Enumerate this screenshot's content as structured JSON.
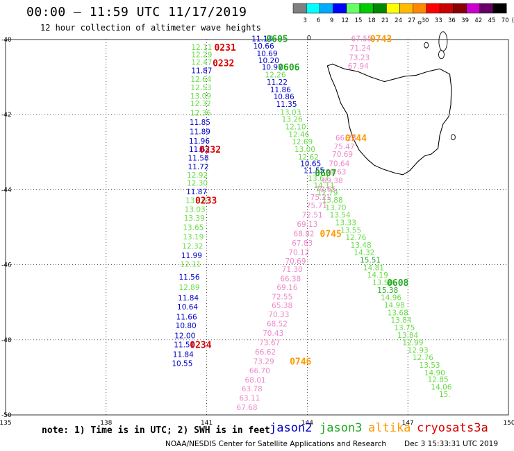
{
  "title": "00:00 — 11:59 UTC 11/17/2019",
  "subtitle": "12 hour collection of altimeter wave heights",
  "color_scale": {
    "labels": [
      "3",
      "6",
      "9",
      "12",
      "15",
      "18",
      "21",
      "24",
      "27",
      "30",
      "33",
      "36",
      "39",
      "42",
      "45",
      "70",
      "(ft)"
    ],
    "colors": [
      "#808080",
      "#00ffff",
      "#00aaff",
      "#0000ff",
      "#66ff66",
      "#00cc00",
      "#008800",
      "#ffff00",
      "#ffbb00",
      "#ff8800",
      "#ff0000",
      "#cc0000",
      "#880000",
      "#cc00cc",
      "#660066",
      "#000000"
    ]
  },
  "axes": {
    "lat_labels": [
      "-40",
      "-42",
      "-44",
      "-46",
      "-48",
      "-50"
    ],
    "lon_labels": [
      "135",
      "138",
      "141",
      "144",
      "147",
      "150"
    ]
  },
  "satellite_colors": {
    "jason2": "#0000cc",
    "jason3": "#22aa22",
    "altika": "#ff9900",
    "cryosat": "#dd0000",
    "s3a": "#cc0000",
    "pink": "#ee88cc",
    "lightgreen": "#66dd44"
  },
  "tracks": [
    {
      "name": "track-west",
      "points": [
        {
          "v": "12.11",
          "lon": 140.85,
          "lat": -40.2,
          "c": "lightgreen"
        },
        {
          "v": "12.29",
          "lon": 140.85,
          "lat": -40.4,
          "c": "lightgreen"
        },
        {
          "v": "12.47",
          "lon": 140.85,
          "lat": -40.6,
          "c": "lightgreen"
        },
        {
          "v": "11.87",
          "lon": 140.85,
          "lat": -40.82,
          "c": "jason2"
        },
        {
          "v": "12.64",
          "lon": 140.83,
          "lat": -41.05,
          "c": "lightgreen"
        },
        {
          "v": "12.53",
          "lon": 140.83,
          "lat": -41.28,
          "c": "lightgreen"
        },
        {
          "v": "13.09",
          "lon": 140.82,
          "lat": -41.5,
          "c": "lightgreen"
        },
        {
          "v": "12.32",
          "lon": 140.82,
          "lat": -41.7,
          "c": "lightgreen"
        },
        {
          "v": "12.36",
          "lon": 140.82,
          "lat": -41.95,
          "c": "lightgreen"
        },
        {
          "v": "11.85",
          "lon": 140.8,
          "lat": -42.2,
          "c": "jason2"
        },
        {
          "v": "11.89",
          "lon": 140.8,
          "lat": -42.45,
          "c": "jason2"
        },
        {
          "v": "11.96",
          "lon": 140.78,
          "lat": -42.7,
          "c": "jason2"
        },
        {
          "v": "11.63",
          "lon": 140.78,
          "lat": -42.92,
          "c": "jason2"
        },
        {
          "v": "11.58",
          "lon": 140.75,
          "lat": -43.15,
          "c": "jason2"
        },
        {
          "v": "11.72",
          "lon": 140.75,
          "lat": -43.38,
          "c": "jason2"
        },
        {
          "v": "12.92",
          "lon": 140.72,
          "lat": -43.6,
          "c": "lightgreen"
        },
        {
          "v": "12.30",
          "lon": 140.72,
          "lat": -43.82,
          "c": "lightgreen"
        },
        {
          "v": "11.87",
          "lon": 140.7,
          "lat": -44.05,
          "c": "jason2"
        },
        {
          "v": "13.16",
          "lon": 140.68,
          "lat": -44.28,
          "c": "lightgreen"
        },
        {
          "v": "13.03",
          "lon": 140.65,
          "lat": -44.52,
          "c": "lightgreen"
        },
        {
          "v": "13.39",
          "lon": 140.63,
          "lat": -44.75,
          "c": "lightgreen"
        },
        {
          "v": "13.65",
          "lon": 140.6,
          "lat": -45.0,
          "c": "lightgreen"
        },
        {
          "v": "13.19",
          "lon": 140.6,
          "lat": -45.25,
          "c": "lightgreen"
        },
        {
          "v": "12.32",
          "lon": 140.58,
          "lat": -45.5,
          "c": "lightgreen"
        },
        {
          "v": "11.99",
          "lon": 140.55,
          "lat": -45.75,
          "c": "jason2"
        },
        {
          "v": "12.11",
          "lon": 140.52,
          "lat": -45.98,
          "c": "lightgreen"
        },
        {
          "v": "11.56",
          "lon": 140.48,
          "lat": -46.32,
          "c": "jason2"
        },
        {
          "v": "12.89",
          "lon": 140.48,
          "lat": -46.6,
          "c": "lightgreen"
        },
        {
          "v": "11.84",
          "lon": 140.45,
          "lat": -46.88,
          "c": "jason2"
        },
        {
          "v": "10.64",
          "lon": 140.43,
          "lat": -47.12,
          "c": "jason2"
        },
        {
          "v": "11.66",
          "lon": 140.4,
          "lat": -47.38,
          "c": "jason2"
        },
        {
          "v": "10.80",
          "lon": 140.38,
          "lat": -47.62,
          "c": "jason2"
        },
        {
          "v": "12.00",
          "lon": 140.35,
          "lat": -47.88,
          "c": "jason2"
        },
        {
          "v": "11.51",
          "lon": 140.33,
          "lat": -48.12,
          "c": "jason2"
        },
        {
          "v": "11.84",
          "lon": 140.3,
          "lat": -48.38,
          "c": "jason2"
        },
        {
          "v": "10.55",
          "lon": 140.27,
          "lat": -48.62,
          "c": "jason2"
        }
      ]
    },
    {
      "name": "track-northeast-blue",
      "points": [
        {
          "v": "11.14",
          "lon": 142.65,
          "lat": -39.97,
          "c": "jason2"
        },
        {
          "v": "10.66",
          "lon": 142.7,
          "lat": -40.17,
          "c": "jason2"
        },
        {
          "v": "10.69",
          "lon": 142.8,
          "lat": -40.37,
          "c": "jason2"
        },
        {
          "v": "10.20",
          "lon": 142.85,
          "lat": -40.55,
          "c": "jason2"
        },
        {
          "v": "10.97",
          "lon": 142.95,
          "lat": -40.73,
          "c": "jason2"
        },
        {
          "v": "12.26",
          "lon": 143.05,
          "lat": -40.93,
          "c": "lightgreen"
        },
        {
          "v": "11.22",
          "lon": 143.1,
          "lat": -41.13,
          "c": "jason2"
        },
        {
          "v": "11.86",
          "lon": 143.2,
          "lat": -41.33,
          "c": "jason2"
        },
        {
          "v": "10.86",
          "lon": 143.3,
          "lat": -41.52,
          "c": "jason2"
        },
        {
          "v": "11.35",
          "lon": 143.38,
          "lat": -41.72,
          "c": "jason2"
        },
        {
          "v": "13.03",
          "lon": 143.5,
          "lat": -41.93,
          "c": "lightgreen"
        },
        {
          "v": "13.26",
          "lon": 143.55,
          "lat": -42.12,
          "c": "lightgreen"
        },
        {
          "v": "12.10",
          "lon": 143.65,
          "lat": -42.32,
          "c": "lightgreen"
        },
        {
          "v": "12.46",
          "lon": 143.75,
          "lat": -42.52,
          "c": "lightgreen"
        },
        {
          "v": "12.69",
          "lon": 143.85,
          "lat": -42.72,
          "c": "lightgreen"
        },
        {
          "v": "13.00",
          "lon": 143.93,
          "lat": -42.92,
          "c": "lightgreen"
        },
        {
          "v": "12.62",
          "lon": 144.03,
          "lat": -43.12,
          "c": "lightgreen"
        },
        {
          "v": "10.65",
          "lon": 144.1,
          "lat": -43.3,
          "c": "jason2"
        },
        {
          "v": "11.55",
          "lon": 144.2,
          "lat": -43.48,
          "c": "jason2"
        },
        {
          "v": "13.67",
          "lon": 144.33,
          "lat": -43.7,
          "c": "lightgreen"
        },
        {
          "v": "14.11",
          "lon": 144.5,
          "lat": -43.88,
          "c": "lightgreen"
        },
        {
          "v": "12.79",
          "lon": 144.6,
          "lat": -44.08,
          "c": "lightgreen"
        },
        {
          "v": "13.88",
          "lon": 144.75,
          "lat": -44.27,
          "c": "lightgreen"
        },
        {
          "v": "13.70",
          "lon": 144.85,
          "lat": -44.47,
          "c": "lightgreen"
        },
        {
          "v": "13.54",
          "lon": 144.98,
          "lat": -44.67,
          "c": "lightgreen"
        },
        {
          "v": "13.33",
          "lon": 145.15,
          "lat": -44.87,
          "c": "lightgreen"
        },
        {
          "v": "13.55",
          "lon": 145.3,
          "lat": -45.07,
          "c": "lightgreen"
        },
        {
          "v": "12.76",
          "lon": 145.45,
          "lat": -45.27,
          "c": "lightgreen"
        },
        {
          "v": "13.48",
          "lon": 145.6,
          "lat": -45.47,
          "c": "lightgreen"
        },
        {
          "v": "14.32",
          "lon": 145.7,
          "lat": -45.67,
          "c": "lightgreen"
        },
        {
          "v": "15.51",
          "lon": 145.88,
          "lat": -45.87,
          "c": "jason3"
        },
        {
          "v": "14.81",
          "lon": 145.98,
          "lat": -46.07,
          "c": "lightgreen"
        },
        {
          "v": "14.19",
          "lon": 146.1,
          "lat": -46.27,
          "c": "lightgreen"
        },
        {
          "v": "13.50",
          "lon": 146.25,
          "lat": -46.47,
          "c": "lightgreen"
        },
        {
          "v": "15.38",
          "lon": 146.4,
          "lat": -46.67,
          "c": "jason3"
        },
        {
          "v": "14.96",
          "lon": 146.5,
          "lat": -46.87,
          "c": "lightgreen"
        },
        {
          "v": "14.98",
          "lon": 146.6,
          "lat": -47.07,
          "c": "lightgreen"
        },
        {
          "v": "13.68",
          "lon": 146.7,
          "lat": -47.27,
          "c": "lightgreen"
        },
        {
          "v": "13.84",
          "lon": 146.8,
          "lat": -47.47,
          "c": "lightgreen"
        },
        {
          "v": "13.75",
          "lon": 146.9,
          "lat": -47.67,
          "c": "lightgreen"
        },
        {
          "v": "13.84",
          "lon": 147.0,
          "lat": -47.87,
          "c": "lightgreen"
        },
        {
          "v": "12.99",
          "lon": 147.15,
          "lat": -48.07,
          "c": "lightgreen"
        },
        {
          "v": "12.93",
          "lon": 147.3,
          "lat": -48.27,
          "c": "lightgreen"
        },
        {
          "v": "12.76",
          "lon": 147.45,
          "lat": -48.47,
          "c": "lightgreen"
        },
        {
          "v": "13.53",
          "lon": 147.65,
          "lat": -48.67,
          "c": "lightgreen"
        },
        {
          "v": "14.90",
          "lon": 147.8,
          "lat": -48.87,
          "c": "lightgreen"
        },
        {
          "v": "12.85",
          "lon": 147.9,
          "lat": -49.05,
          "c": "lightgreen"
        },
        {
          "v": "14.06",
          "lon": 148.0,
          "lat": -49.25,
          "c": "lightgreen"
        },
        {
          "v": "15.",
          "lon": 148.1,
          "lat": -49.45,
          "c": "lightgreen"
        }
      ]
    },
    {
      "name": "track-pink",
      "points": [
        {
          "v": "67.55",
          "lon": 145.62,
          "lat": -39.97,
          "c": "pink"
        },
        {
          "v": "71.24",
          "lon": 145.58,
          "lat": -40.22,
          "c": "pink"
        },
        {
          "v": "73.23",
          "lon": 145.55,
          "lat": -40.47,
          "c": "pink"
        },
        {
          "v": "67.94",
          "lon": 145.52,
          "lat": -40.7,
          "c": "pink"
        },
        {
          "v": "66.28",
          "lon": 145.15,
          "lat": -42.62,
          "c": "pink"
        },
        {
          "v": "75.47",
          "lon": 145.1,
          "lat": -42.85,
          "c": "pink"
        },
        {
          "v": "70.69",
          "lon": 145.05,
          "lat": -43.05,
          "c": "pink"
        },
        {
          "v": "70.64",
          "lon": 144.95,
          "lat": -43.3,
          "c": "pink"
        },
        {
          "v": "69.63",
          "lon": 144.85,
          "lat": -43.52,
          "c": "pink"
        },
        {
          "v": "69.38",
          "lon": 144.75,
          "lat": -43.75,
          "c": "pink"
        },
        {
          "v": "70.65",
          "lon": 144.55,
          "lat": -43.98,
          "c": "pink"
        },
        {
          "v": "75.21",
          "lon": 144.4,
          "lat": -44.2,
          "c": "pink"
        },
        {
          "v": "75.71",
          "lon": 144.28,
          "lat": -44.42,
          "c": "pink"
        },
        {
          "v": "72.51",
          "lon": 144.15,
          "lat": -44.67,
          "c": "pink"
        },
        {
          "v": "69.13",
          "lon": 144.0,
          "lat": -44.92,
          "c": "pink"
        },
        {
          "v": "68.82",
          "lon": 143.9,
          "lat": -45.17,
          "c": "pink"
        },
        {
          "v": "67.83",
          "lon": 143.85,
          "lat": -45.42,
          "c": "pink"
        },
        {
          "v": "70.12",
          "lon": 143.75,
          "lat": -45.67,
          "c": "pink"
        },
        {
          "v": "70.69",
          "lon": 143.65,
          "lat": -45.9,
          "c": "pink"
        },
        {
          "v": "71.30",
          "lon": 143.55,
          "lat": -46.12,
          "c": "pink"
        },
        {
          "v": "66.38",
          "lon": 143.5,
          "lat": -46.37,
          "c": "pink"
        },
        {
          "v": "69.16",
          "lon": 143.4,
          "lat": -46.6,
          "c": "pink"
        },
        {
          "v": "72.55",
          "lon": 143.25,
          "lat": -46.85,
          "c": "pink"
        },
        {
          "v": "65.38",
          "lon": 143.25,
          "lat": -47.08,
          "c": "pink"
        },
        {
          "v": "70.33",
          "lon": 143.15,
          "lat": -47.32,
          "c": "pink"
        },
        {
          "v": "68.52",
          "lon": 143.1,
          "lat": -47.57,
          "c": "pink"
        },
        {
          "v": "70.43",
          "lon": 142.98,
          "lat": -47.82,
          "c": "pink"
        },
        {
          "v": "73.67",
          "lon": 142.88,
          "lat": -48.07,
          "c": "pink"
        },
        {
          "v": "66.62",
          "lon": 142.75,
          "lat": -48.32,
          "c": "pink"
        },
        {
          "v": "73.29",
          "lon": 142.7,
          "lat": -48.57,
          "c": "pink"
        },
        {
          "v": "66.70",
          "lon": 142.58,
          "lat": -48.82,
          "c": "pink"
        },
        {
          "v": "68.01",
          "lon": 142.45,
          "lat": -49.07,
          "c": "pink"
        },
        {
          "v": "63.78",
          "lon": 142.35,
          "lat": -49.3,
          "c": "pink"
        },
        {
          "v": "63.11",
          "lon": 142.28,
          "lat": -49.55,
          "c": "pink"
        },
        {
          "v": "67.68",
          "lon": 142.2,
          "lat": -49.8,
          "c": "pink"
        }
      ]
    }
  ],
  "time_labels": [
    {
      "t": "0231",
      "lon": 141.55,
      "lat": -40.2,
      "c": "cryosat"
    },
    {
      "t": "0232",
      "lon": 141.5,
      "lat": -40.62,
      "c": "cryosat"
    },
    {
      "t": "0232",
      "lon": 141.1,
      "lat": -42.92,
      "c": "cryosat"
    },
    {
      "t": "0233",
      "lon": 140.98,
      "lat": -44.28,
      "c": "cryosat"
    },
    {
      "t": "0234",
      "lon": 140.82,
      "lat": -48.12,
      "c": "cryosat"
    },
    {
      "t": "0605",
      "lon": 143.1,
      "lat": -39.97,
      "c": "jason3"
    },
    {
      "t": "0606",
      "lon": 143.45,
      "lat": -40.73,
      "c": "jason3"
    },
    {
      "t": "0607",
      "lon": 144.55,
      "lat": -43.55,
      "c": "jason3"
    },
    {
      "t": "0608",
      "lon": 146.7,
      "lat": -46.47,
      "c": "jason3"
    },
    {
      "t": "0743",
      "lon": 146.2,
      "lat": -39.97,
      "c": "altika"
    },
    {
      "t": "0744",
      "lon": 145.45,
      "lat": -42.62,
      "c": "altika"
    },
    {
      "t": "0745",
      "lon": 144.7,
      "lat": -45.17,
      "c": "altika"
    },
    {
      "t": "0746",
      "lon": 143.8,
      "lat": -48.57,
      "c": "altika"
    }
  ],
  "note": "note: 1) Time is in UTC; 2) SWH is in feet",
  "legend": [
    {
      "name": "jason2",
      "c": "jason2"
    },
    {
      "name": "jason3",
      "c": "jason3"
    },
    {
      "name": "altika",
      "c": "altika"
    },
    {
      "name": "cryosat",
      "c": "cryosat"
    },
    {
      "name": "s3a",
      "c": "s3a"
    }
  ],
  "footer": "NOAA/NESDIS Center for Satellite Applications and Research",
  "footer_time": "Dec  3 15:33:31 UTC 2019"
}
